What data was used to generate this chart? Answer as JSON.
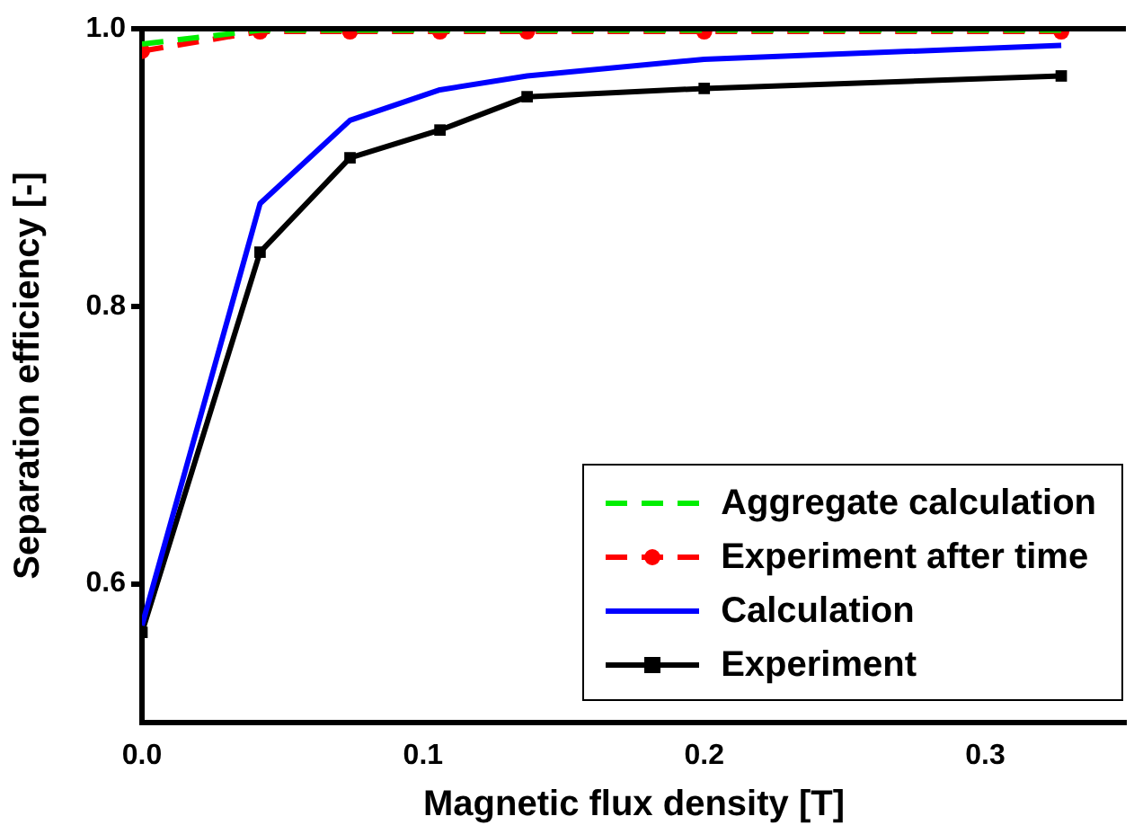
{
  "chart_data": {
    "type": "line",
    "xlabel": "Magnetic flux density [T]",
    "ylabel": "Separation efficiency [-]",
    "x": [
      0,
      0.042,
      0.074,
      0.106,
      0.137,
      0.2,
      0.327
    ],
    "xlim": [
      0,
      0.35
    ],
    "xticks": [
      {
        "value": 0,
        "label": "0.0"
      },
      0.1,
      0.2,
      0.3
    ],
    "ylim": [
      0.5,
      1.0
    ],
    "yticks": [
      0.6,
      0.8,
      {
        "value": 1,
        "label": "1.0"
      }
    ],
    "grid": false,
    "legend": "bottom right",
    "series": [
      {
        "name": "Aggregate calculation",
        "color": "#00ee00",
        "line_style": "dashed",
        "marker": "none",
        "values": [
          0.989,
          0.999,
          0.999,
          0.999,
          0.999,
          0.999,
          0.999
        ]
      },
      {
        "name": "Experiment after time",
        "color": "#ff0000",
        "line_style": "dashed",
        "marker": "circle",
        "values": [
          0.984,
          0.998,
          0.998,
          0.998,
          0.998,
          0.998,
          0.998
        ]
      },
      {
        "name": "Calculation",
        "color": "#0000ff",
        "line_style": "solid",
        "marker": "none",
        "values": [
          0.57,
          0.874,
          0.934,
          0.956,
          0.966,
          0.978,
          0.988
        ]
      },
      {
        "name": "Experiment",
        "color": "#000000",
        "line_style": "solid",
        "marker": "square",
        "values": [
          0.565,
          0.839,
          0.907,
          0.927,
          0.951,
          0.957,
          0.966
        ]
      }
    ]
  }
}
